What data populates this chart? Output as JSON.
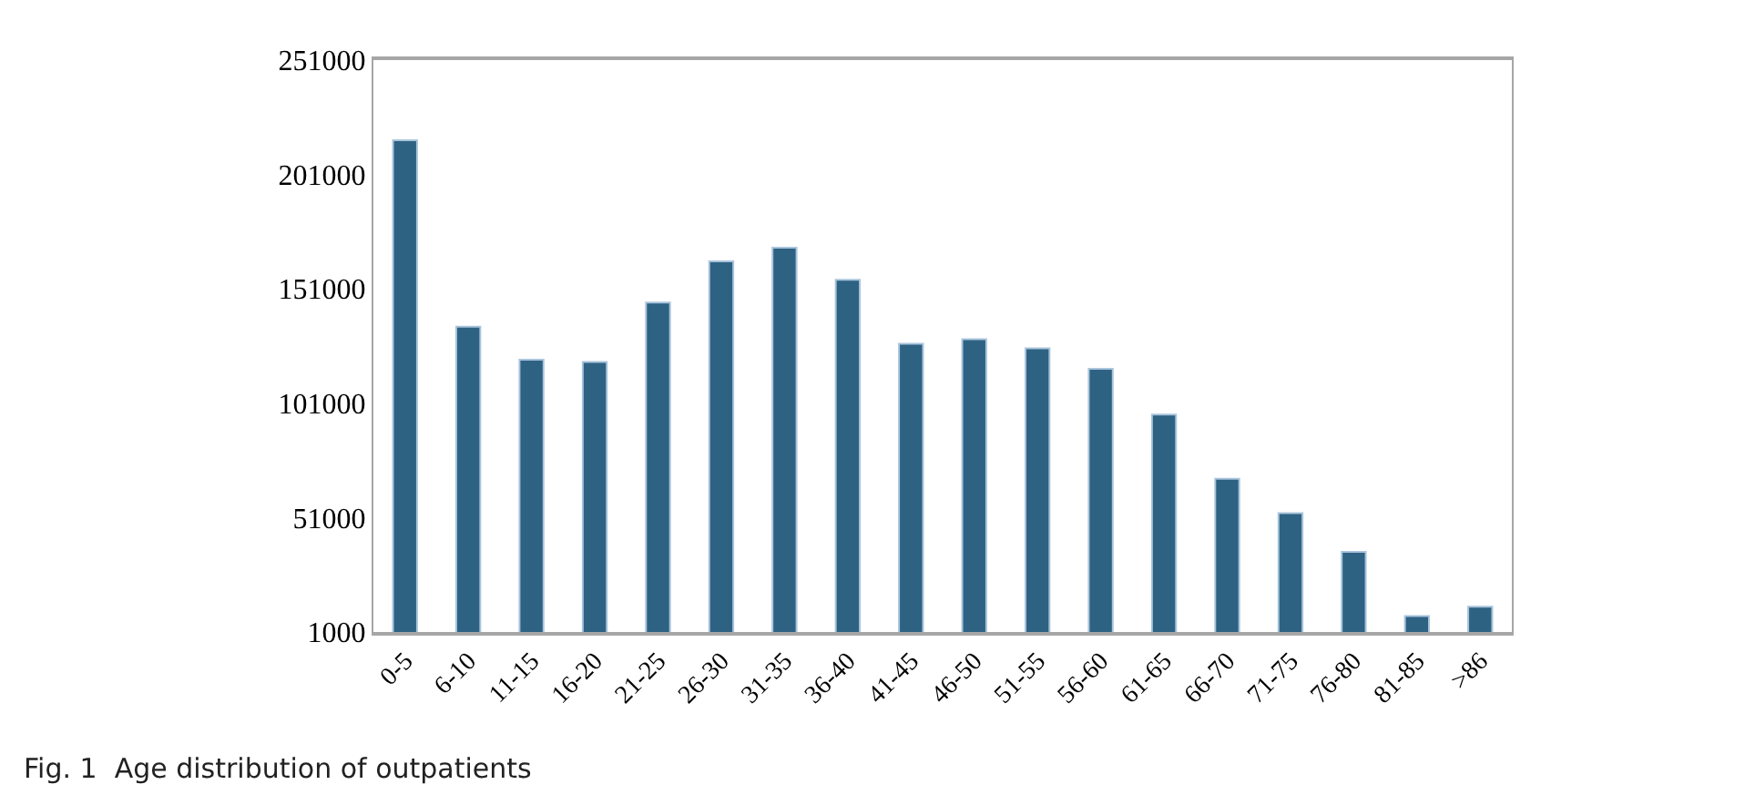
{
  "chart_data": {
    "type": "bar",
    "categories": [
      "0-5",
      "6-10",
      "11-15",
      "16-20",
      "21-25",
      "26-30",
      "31-35",
      "36-40",
      "41-45",
      "46-50",
      "51-55",
      "56-60",
      "61-65",
      "66-70",
      "71-75",
      "76-80",
      "81-85",
      ">86"
    ],
    "values": [
      216000,
      134500,
      120000,
      119000,
      145000,
      163000,
      169000,
      155000,
      127000,
      129000,
      125000,
      116000,
      96000,
      68000,
      53000,
      36000,
      8000,
      12000
    ],
    "color": "#2e6283",
    "ylim": [
      1000,
      251000
    ],
    "yticks": [
      1000,
      51000,
      101000,
      151000,
      201000,
      251000
    ],
    "annotations": [
      "Fig. 1  Age distribution of outpatients"
    ]
  }
}
